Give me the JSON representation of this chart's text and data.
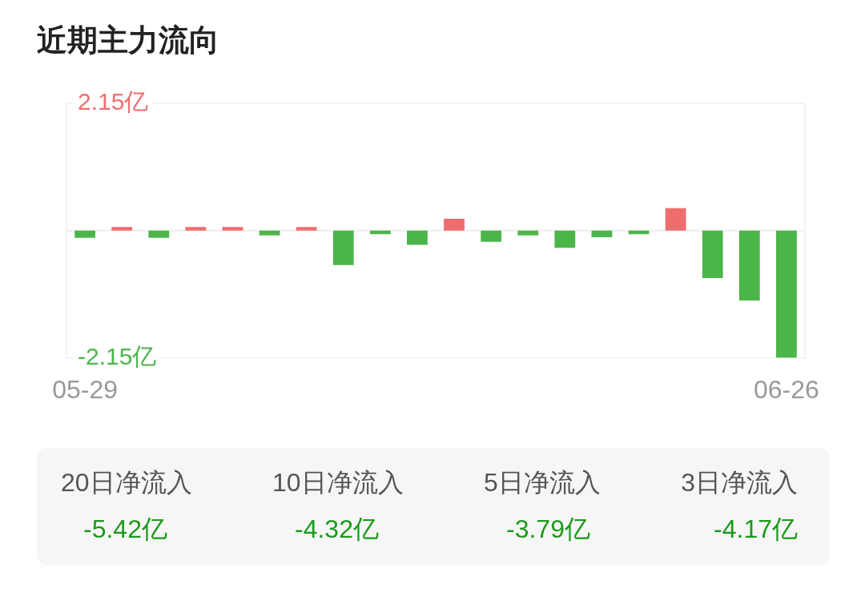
{
  "chart_data": [
    {
      "type": "bar",
      "title": "近期主力流向",
      "categories": [
        "05-29",
        null,
        null,
        null,
        null,
        null,
        null,
        null,
        null,
        null,
        null,
        null,
        null,
        null,
        null,
        null,
        null,
        null,
        null,
        "06-26"
      ],
      "values": [
        -0.12,
        0.06,
        -0.12,
        0.06,
        0.06,
        -0.08,
        0.06,
        -0.58,
        -0.06,
        -0.24,
        0.2,
        -0.19,
        -0.08,
        -0.29,
        -0.11,
        -0.06,
        0.38,
        -0.8,
        -1.18,
        -2.15
      ],
      "colors": [
        "#4cb54a",
        "#ee6e6e",
        "#4cb54a",
        "#ee6e6e",
        "#ee6e6e",
        "#4cb54a",
        "#ee6e6e",
        "#4cb54a",
        "#4cb54a",
        "#4cb54a",
        "#ee6e6e",
        "#4cb54a",
        "#4cb54a",
        "#4cb54a",
        "#4cb54a",
        "#4cb54a",
        "#ee6e6e",
        "#4cb54a",
        "#4cb54a",
        "#4cb54a"
      ],
      "ylim": [
        -2.15,
        2.15
      ],
      "yticks": [
        {
          "value": -2.15,
          "label": "-2.15亿"
        },
        {
          "value": 2.15,
          "label": "2.15亿"
        }
      ],
      "ref_lines": [
        {
          "axis": "y",
          "value": 0,
          "color": "#eeeeee"
        }
      ],
      "grid": false,
      "legend": false
    },
    {
      "type": "other",
      "color": "#1a9a1a",
      "annotations": [
        "20日净流入",
        "-5.42亿",
        "10日净流入",
        "-4.32亿",
        "5日净流入",
        "-3.79亿",
        "3日净流入",
        "-4.17亿"
      ]
    }
  ]
}
